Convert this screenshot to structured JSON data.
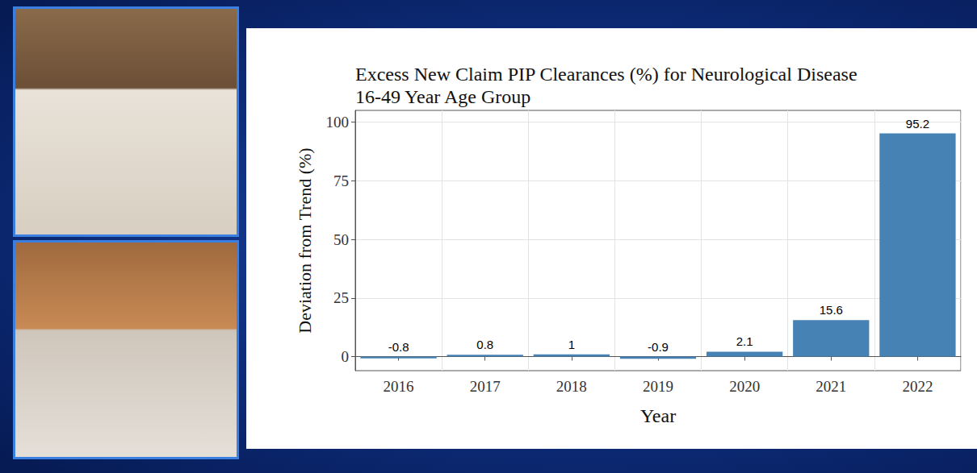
{
  "chart_data": {
    "type": "bar",
    "title": "Excess New Claim PIP Clearances (%) for Neurological Disease\n16-49 Year Age Group",
    "x_label": "Year",
    "y_label": "Deviation from Trend (%)",
    "categories": [
      "2016",
      "2017",
      "2018",
      "2019",
      "2020",
      "2021",
      "2022"
    ],
    "values": [
      -0.8,
      0.8,
      1,
      -0.9,
      2.1,
      15.6,
      95.2
    ],
    "color": "#4682b4",
    "ylim": [
      -6,
      105
    ],
    "yticks": [
      0,
      25,
      50,
      75,
      100
    ],
    "grid": true,
    "data_labels": true
  }
}
